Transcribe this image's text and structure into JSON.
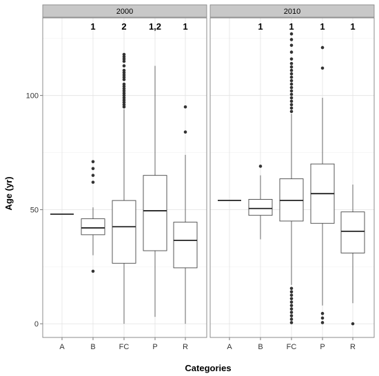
{
  "chart_data": {
    "type": "boxplot",
    "xlabel": "Categories",
    "ylabel": "Age (yr)",
    "ylim": [
      -6,
      134
    ],
    "yticks": [
      0,
      50,
      100
    ],
    "categories": [
      "A",
      "B",
      "FC",
      "P",
      "R"
    ],
    "grid": true,
    "panels": [
      {
        "title": "2000",
        "letters": [
          "",
          "1",
          "2",
          "1,2",
          "1"
        ],
        "boxes": [
          {
            "category": "A",
            "q1": 48,
            "median": 48,
            "q3": 48,
            "lower": 48,
            "upper": 48,
            "outliers": []
          },
          {
            "category": "B",
            "q1": 39,
            "median": 42,
            "q3": 46,
            "lower": 30,
            "upper": 51,
            "outliers": [
              23,
              62,
              65,
              68,
              71
            ]
          },
          {
            "category": "FC",
            "q1": 26.5,
            "median": 42.5,
            "q3": 54,
            "lower": 0,
            "upper": 94,
            "outliers": [
              95,
              96,
              97,
              98,
              99,
              100,
              101,
              102,
              103,
              104,
              105,
              107,
              108,
              109,
              110,
              111,
              113,
              115,
              116,
              117,
              118
            ]
          },
          {
            "category": "P",
            "q1": 32,
            "median": 49.5,
            "q3": 65,
            "lower": 3,
            "upper": 113,
            "outliers": []
          },
          {
            "category": "R",
            "q1": 24.5,
            "median": 36.5,
            "q3": 44.5,
            "lower": 0,
            "upper": 74,
            "outliers": [
              84,
              95
            ]
          }
        ]
      },
      {
        "title": "2010",
        "letters": [
          "",
          "1",
          "1",
          "1",
          "1"
        ],
        "boxes": [
          {
            "category": "A",
            "q1": 54,
            "median": 54,
            "q3": 54,
            "lower": 54,
            "upper": 54,
            "outliers": []
          },
          {
            "category": "B",
            "q1": 47.5,
            "median": 50.5,
            "q3": 54.5,
            "lower": 37,
            "upper": 65,
            "outliers": [
              69
            ]
          },
          {
            "category": "FC",
            "q1": 45,
            "median": 54,
            "q3": 63.5,
            "lower": 17,
            "upper": 92,
            "outliers": [
              0.5,
              2,
              3.5,
              5,
              6.5,
              8,
              9.5,
              11,
              12.5,
              14,
              15.5,
              93,
              94.5,
              96,
              97.5,
              99,
              100.5,
              102,
              103.5,
              105,
              106.5,
              108,
              109.5,
              111,
              112.5,
              114,
              116,
              119,
              122,
              124.5,
              127
            ]
          },
          {
            "category": "P",
            "q1": 44,
            "median": 57,
            "q3": 70,
            "lower": 8,
            "upper": 99,
            "outliers": [
              0.5,
              2.5,
              4.5,
              112,
              121
            ]
          },
          {
            "category": "R",
            "q1": 31,
            "median": 40.5,
            "q3": 49,
            "lower": 9,
            "upper": 61,
            "outliers": [
              0
            ]
          }
        ]
      }
    ]
  }
}
